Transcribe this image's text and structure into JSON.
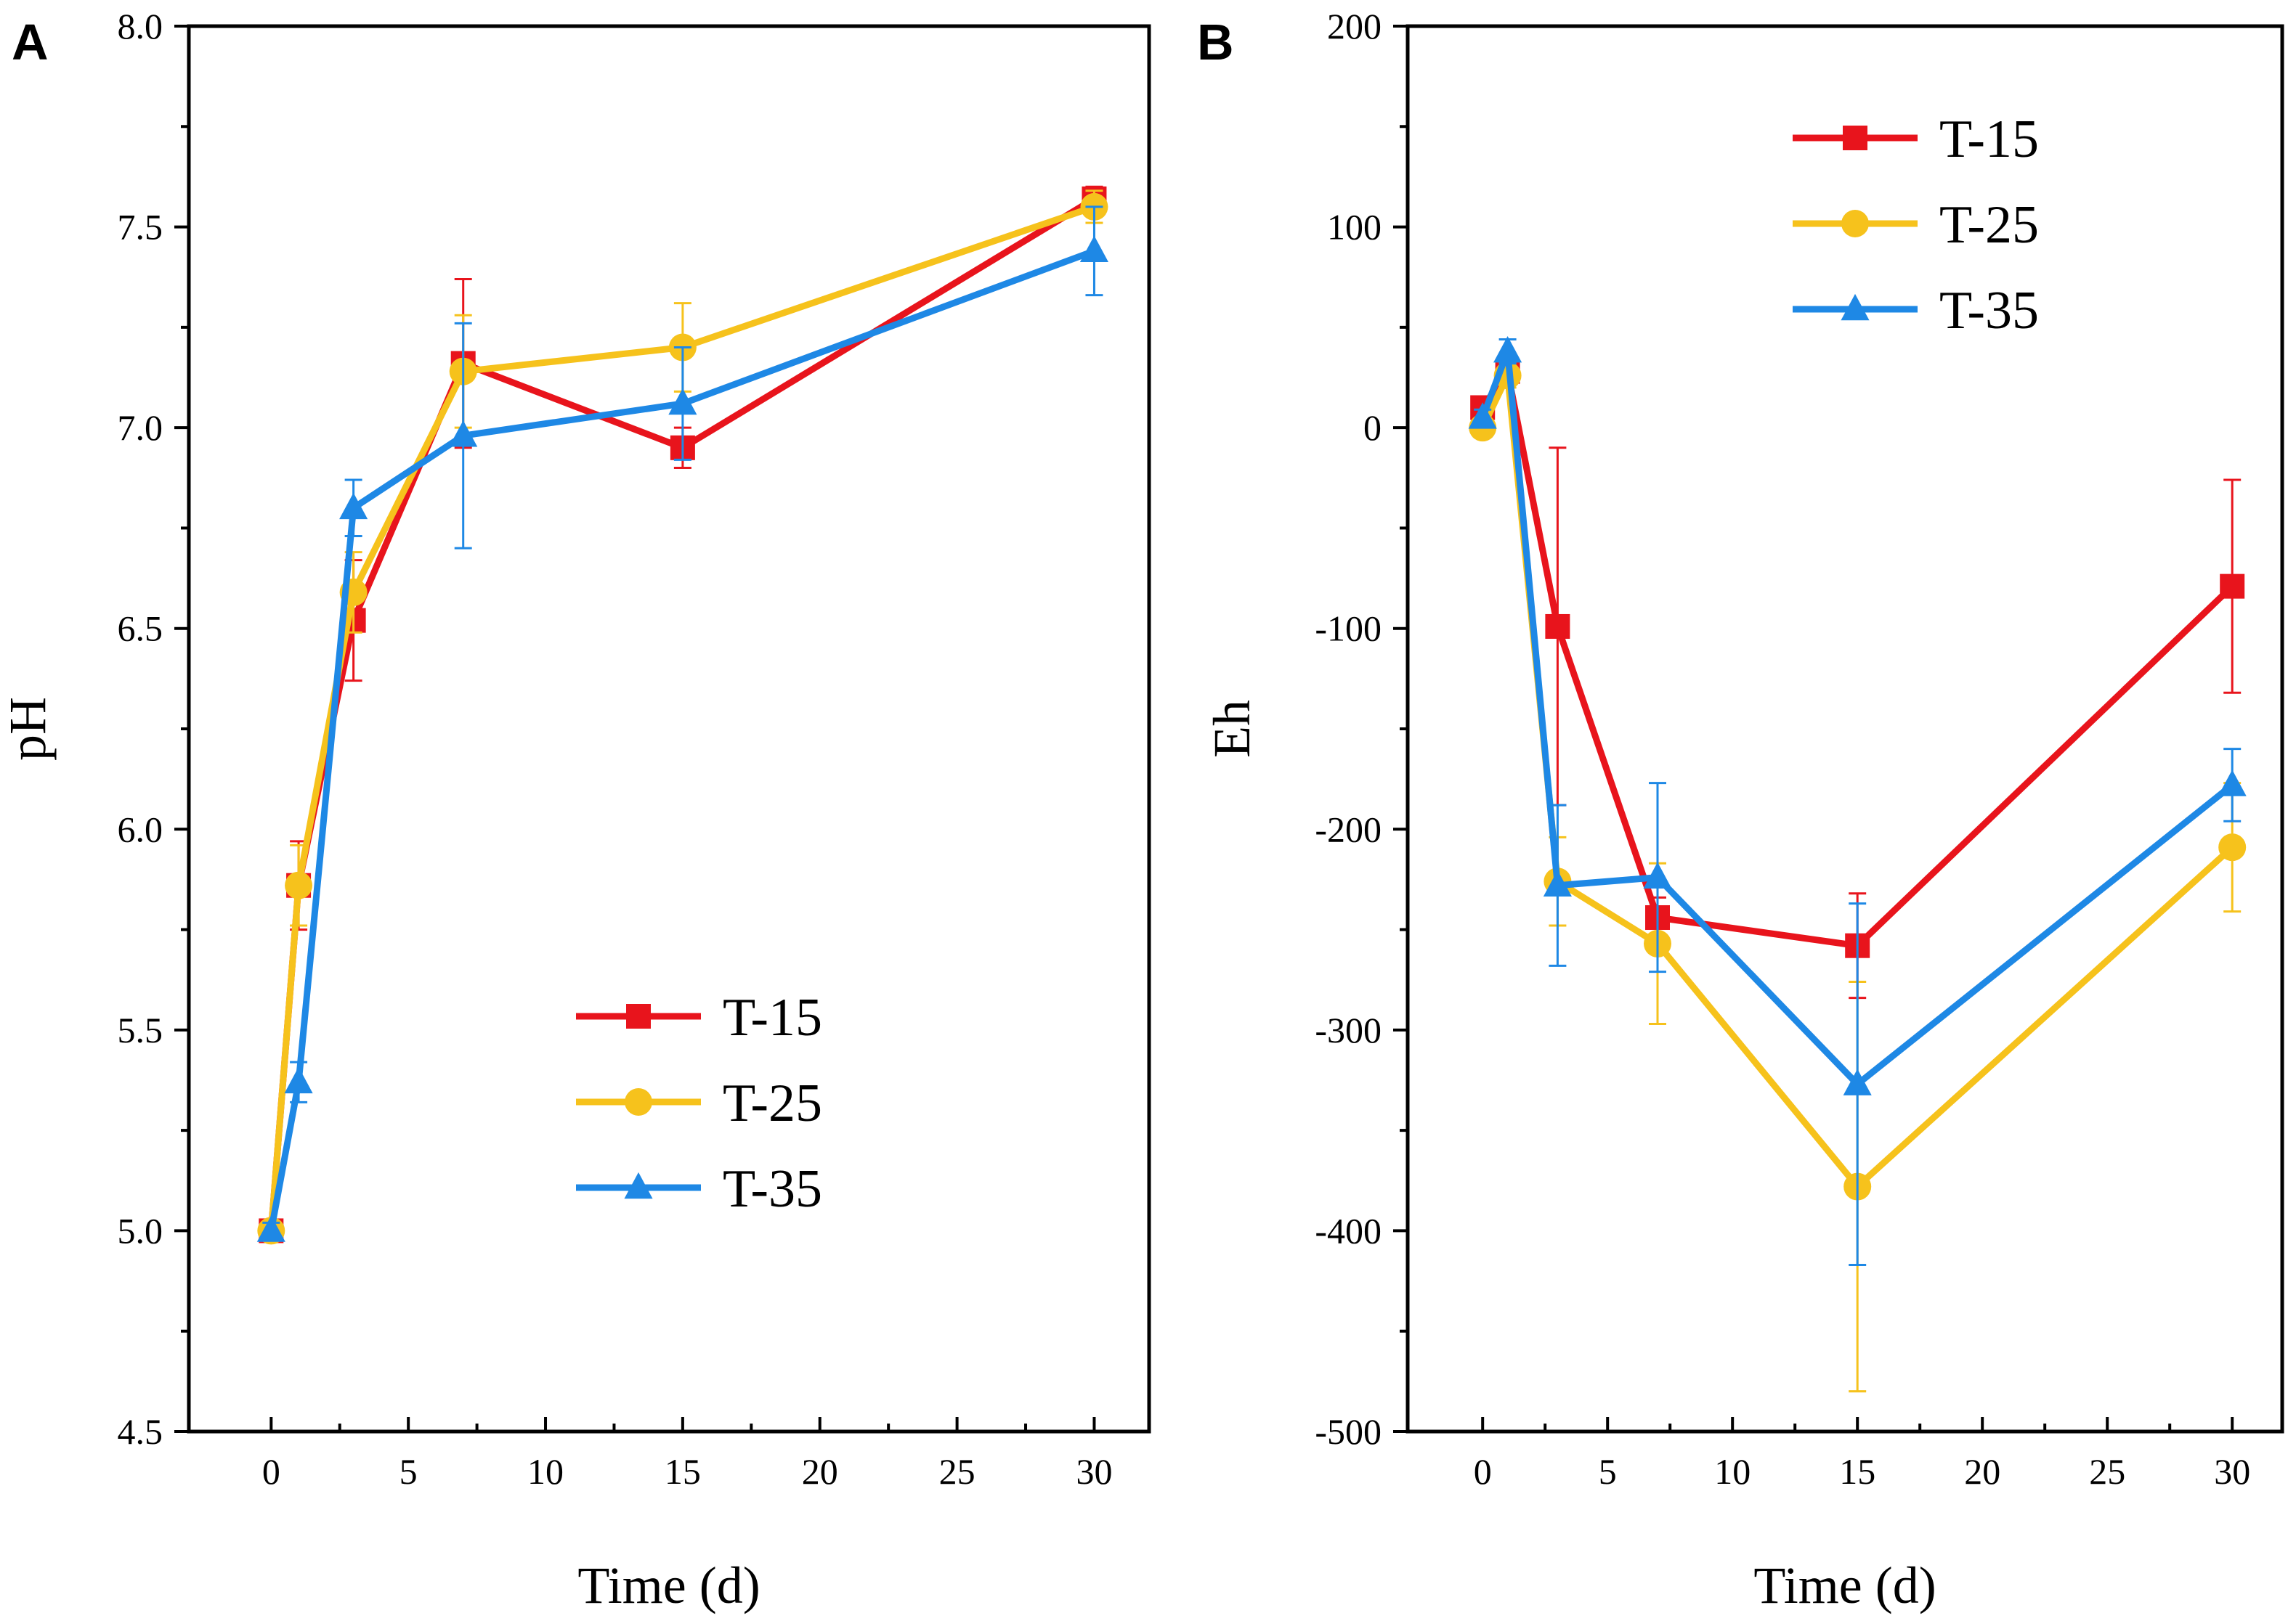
{
  "colors": {
    "T-15": "#e8141c",
    "T-25": "#f6c21c",
    "T-35": "#1e88e5",
    "axis": "#000000"
  },
  "chart_data": [
    {
      "panel": "A",
      "type": "line",
      "xlabel": "Time (d)",
      "ylabel": "pH",
      "xlim": [
        -3,
        32
      ],
      "ylim": [
        4.5,
        8.0
      ],
      "xticks": [
        0,
        5,
        10,
        15,
        20,
        25,
        30
      ],
      "xtick_labels": [
        "0",
        "5",
        "10",
        "15",
        "20",
        "25",
        "30"
      ],
      "yticks": [
        4.5,
        5.0,
        5.5,
        6.0,
        6.5,
        7.0,
        7.5,
        8.0
      ],
      "ytick_labels": [
        "4.5",
        "5.0",
        "5.5",
        "6.0",
        "6.5",
        "7.0",
        "7.5",
        "8.0"
      ],
      "legend_position": "bottom-right",
      "x": [
        0,
        1,
        3,
        7,
        15,
        30
      ],
      "series": [
        {
          "name": "T-15",
          "marker": "square",
          "values": [
            5.0,
            5.86,
            6.52,
            7.16,
            6.95,
            7.57
          ],
          "errors": [
            0.02,
            0.11,
            0.15,
            0.21,
            0.05,
            0.03
          ]
        },
        {
          "name": "T-25",
          "marker": "circle",
          "values": [
            5.0,
            5.86,
            6.59,
            7.14,
            7.2,
            7.55
          ],
          "errors": [
            0.02,
            0.1,
            0.1,
            0.14,
            0.11,
            0.04
          ]
        },
        {
          "name": "T-35",
          "marker": "triangle",
          "values": [
            5.0,
            5.37,
            6.8,
            6.98,
            7.06,
            7.44
          ],
          "errors": [
            0.02,
            0.05,
            0.07,
            0.28,
            0.14,
            0.11
          ]
        }
      ],
      "legend": [
        "T-15",
        "T-25",
        "T-35"
      ]
    },
    {
      "panel": "B",
      "type": "line",
      "xlabel": "Time (d)",
      "ylabel": "Eh",
      "xlim": [
        -3,
        32
      ],
      "ylim": [
        -500,
        200
      ],
      "xticks": [
        0,
        5,
        10,
        15,
        20,
        25,
        30
      ],
      "xtick_labels": [
        "0",
        "5",
        "10",
        "15",
        "20",
        "25",
        "30"
      ],
      "yticks": [
        -500,
        -400,
        -300,
        -200,
        -100,
        0,
        100,
        200
      ],
      "ytick_labels": [
        "-500",
        "-400",
        "-300",
        "-200",
        "-100",
        "0",
        "100",
        "200"
      ],
      "legend_position": "top-right",
      "x": [
        0,
        1,
        3,
        7,
        15,
        30
      ],
      "series": [
        {
          "name": "T-15",
          "marker": "square",
          "values": [
            10,
            28,
            -99,
            -244,
            -258,
            -79
          ],
          "errors": [
            4,
            6,
            89,
            10,
            26,
            53
          ]
        },
        {
          "name": "T-25",
          "marker": "circle",
          "values": [
            0,
            26,
            -226,
            -257,
            -378,
            -209
          ],
          "errors": [
            4,
            6,
            22,
            40,
            102,
            32
          ]
        },
        {
          "name": "T-35",
          "marker": "triangle",
          "values": [
            5,
            38,
            -228,
            -224,
            -327,
            -178
          ],
          "errors": [
            4,
            6,
            40,
            47,
            90,
            18
          ]
        }
      ],
      "legend": [
        "T-15",
        "T-25",
        "T-35"
      ]
    }
  ]
}
